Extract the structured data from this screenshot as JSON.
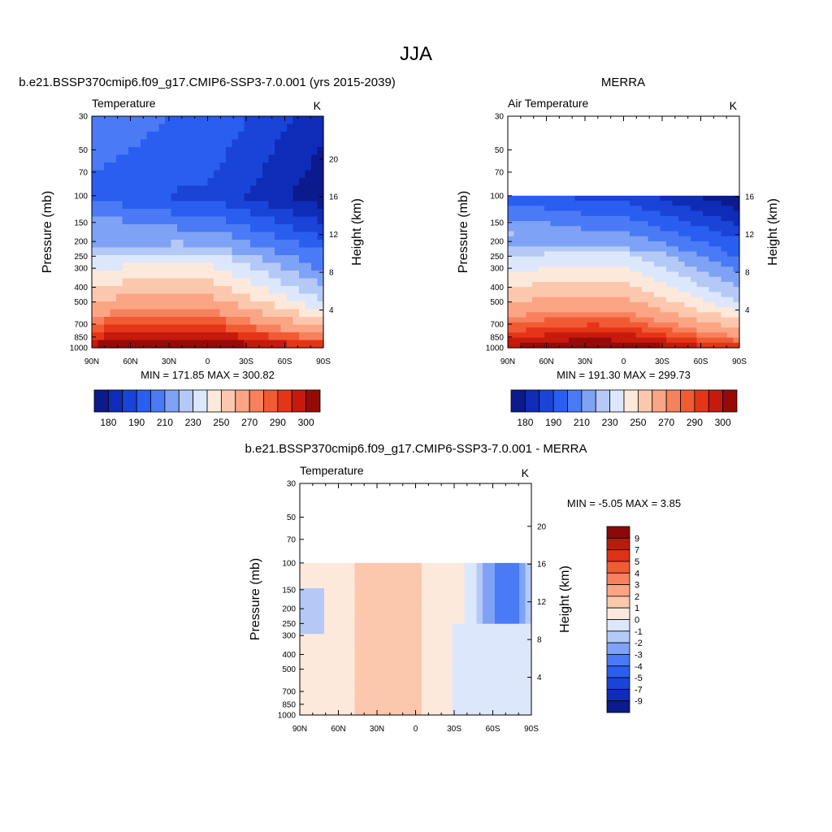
{
  "figure": {
    "title": "JJA"
  },
  "chart_data": [
    {
      "type": "heatmap",
      "case_title": "b.e21.BSSP370cmip6.f09_g17.CMIP6-SSP3-7.0.001 (yrs 2015-2039)",
      "left_label": "Temperature",
      "units": "K",
      "ylabel": "Pressure (mb)",
      "y2label": "Height (km)",
      "x_ticks": [
        "90N",
        "60N",
        "30N",
        "0",
        "30S",
        "60S",
        "90S"
      ],
      "y_ticks": [
        "30",
        "50",
        "70",
        "100",
        "150",
        "200",
        "250",
        "300",
        "400",
        "500",
        "700",
        "850",
        "1000"
      ],
      "y2_ticks": [
        "4",
        "8",
        "12",
        "16",
        "20"
      ],
      "stats": "MIN = 171.85  MAX = 300.82",
      "min": 171.85,
      "max": 300.82,
      "data_top_pressure": 30,
      "field": "model",
      "colorbar": {
        "levels_labeled": [
          "180",
          "190",
          "210",
          "230",
          "250",
          "270",
          "290",
          "300"
        ],
        "colors": [
          "#0b1a8c",
          "#0f2cb8",
          "#1a44d8",
          "#2a5ef0",
          "#4a7af5",
          "#7ea2f5",
          "#b5c9f7",
          "#dde7fb",
          "#fde9db",
          "#fcc8ad",
          "#fba585",
          "#f7815d",
          "#f25a34",
          "#e53519",
          "#c51a0d",
          "#960a08"
        ]
      }
    },
    {
      "type": "heatmap",
      "case_title": "MERRA",
      "left_label": "Air Temperature",
      "units": "K",
      "ylabel": "Pressure (mb)",
      "y2label": "Height (km)",
      "x_ticks": [
        "90N",
        "60N",
        "30N",
        "0",
        "30S",
        "60S",
        "90S"
      ],
      "y_ticks": [
        "30",
        "50",
        "70",
        "100",
        "150",
        "200",
        "250",
        "300",
        "400",
        "500",
        "700",
        "850",
        "1000"
      ],
      "y2_ticks": [
        "4",
        "8",
        "12",
        "16"
      ],
      "stats": "MIN = 191.30  MAX = 299.73",
      "min": 191.3,
      "max": 299.73,
      "data_top_pressure": 100,
      "field": "obs",
      "colorbar": {
        "levels_labeled": [
          "180",
          "190",
          "210",
          "230",
          "250",
          "270",
          "290",
          "300"
        ],
        "colors": [
          "#0b1a8c",
          "#0f2cb8",
          "#1a44d8",
          "#2a5ef0",
          "#4a7af5",
          "#7ea2f5",
          "#b5c9f7",
          "#dde7fb",
          "#fde9db",
          "#fcc8ad",
          "#fba585",
          "#f7815d",
          "#f25a34",
          "#e53519",
          "#c51a0d",
          "#960a08"
        ]
      }
    },
    {
      "type": "heatmap",
      "case_title": "b.e21.BSSP370cmip6.f09_g17.CMIP6-SSP3-7.0.001 - MERRA",
      "left_label": "Temperature",
      "units": "K",
      "ylabel": "Pressure (mb)",
      "y2label": "Height (km)",
      "x_ticks": [
        "90N",
        "60N",
        "30N",
        "0",
        "30S",
        "60S",
        "90S"
      ],
      "y_ticks": [
        "30",
        "50",
        "70",
        "100",
        "150",
        "200",
        "250",
        "300",
        "400",
        "500",
        "700",
        "850",
        "1000"
      ],
      "y2_ticks": [
        "4",
        "8",
        "12",
        "16",
        "20"
      ],
      "stats": "MIN =  -5.05  MAX =   3.85",
      "min": -5.05,
      "max": 3.85,
      "data_top_pressure": 100,
      "field": "diff",
      "colorbar": {
        "levels_labeled": [
          "9",
          "7",
          "5",
          "4",
          "3",
          "2",
          "1",
          "0",
          "-1",
          "-2",
          "-3",
          "-4",
          "-5",
          "-7",
          "-9"
        ],
        "colors": [
          "#8b0a08",
          "#b81a0e",
          "#dc3218",
          "#f25a34",
          "#f7815d",
          "#fba585",
          "#fcc8ad",
          "#fde9db",
          "#dde7fb",
          "#b5c9f7",
          "#7ea2f5",
          "#4a7af5",
          "#2a5ef0",
          "#1a44d8",
          "#0f2cb8",
          "#0b1a8c"
        ]
      }
    }
  ]
}
